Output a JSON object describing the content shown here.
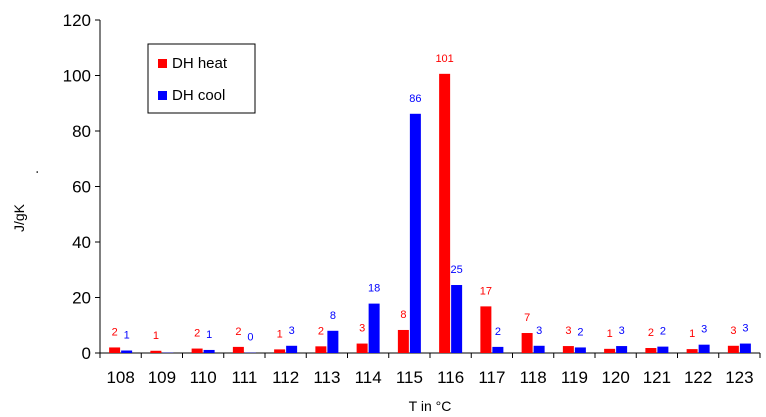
{
  "chart_data": {
    "type": "bar",
    "title": "",
    "xlabel": "T in °C",
    "ylabel": "J/gK",
    "ylabel_suffix": ".",
    "categories": [
      "108",
      "109",
      "110",
      "111",
      "112",
      "113",
      "114",
      "115",
      "116",
      "117",
      "118",
      "119",
      "120",
      "121",
      "122",
      "123"
    ],
    "series": [
      {
        "name": "DH heat",
        "color": "#ff0000",
        "values": [
          2.0,
          0.8,
          1.6,
          2.2,
          1.3,
          2.4,
          3.4,
          8.3,
          100.6,
          16.8,
          7.2,
          2.5,
          1.5,
          1.8,
          1.4,
          2.6
        ],
        "labels": [
          "2",
          "1",
          "2",
          "2",
          "1",
          "2",
          "3",
          "8",
          "101",
          "17",
          "7",
          "3",
          "1",
          "2",
          "1",
          "3"
        ]
      },
      {
        "name": "DH cool",
        "color": "#0000ff",
        "values": [
          0.9,
          0.1,
          1.1,
          0.1,
          2.6,
          8.0,
          17.8,
          86.2,
          24.5,
          2.2,
          2.6,
          2.0,
          2.5,
          2.3,
          3.0,
          3.4
        ],
        "labels": [
          "1",
          "",
          "1",
          "0",
          "3",
          "8",
          "18",
          "86",
          "25",
          "2",
          "3",
          "2",
          "3",
          "2",
          "3",
          "3"
        ]
      }
    ],
    "ylim": [
      0,
      120
    ],
    "yticks": [
      0,
      20,
      40,
      60,
      80,
      100,
      120
    ],
    "grid": false,
    "legend_position": "top-left"
  }
}
